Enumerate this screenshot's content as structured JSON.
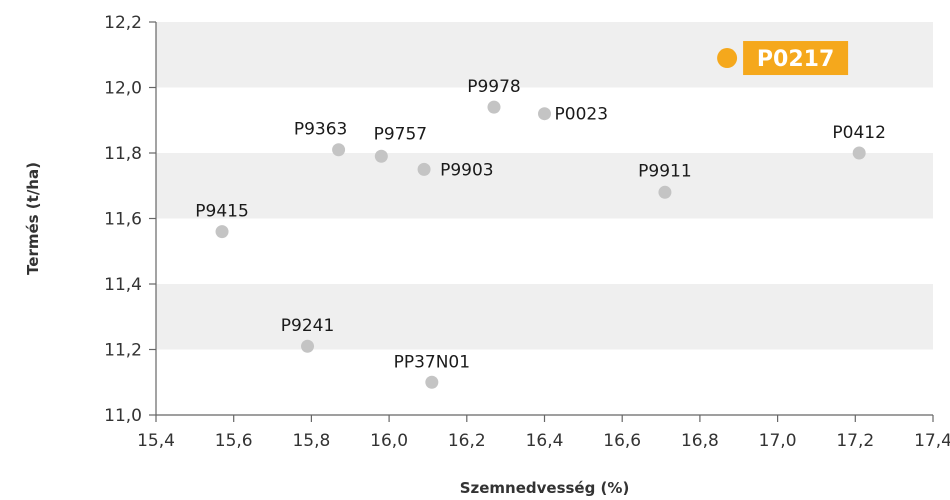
{
  "chart_data": {
    "type": "scatter",
    "xlabel": "Szemnedvesség (%)",
    "ylabel": "Termés (t/ha)",
    "xlim": [
      15.4,
      17.4
    ],
    "ylim": [
      11.0,
      12.2
    ],
    "x_ticks": [
      "15,4",
      "15,6",
      "15,8",
      "16,0",
      "16,2",
      "16,4",
      "16,6",
      "16,8",
      "17,0",
      "17,2",
      "17,4"
    ],
    "y_ticks": [
      "11,0",
      "11,2",
      "11,4",
      "11,6",
      "11,8",
      "12,0",
      "12,2"
    ],
    "grid": "alternating horizontal bands",
    "highlight": "P0217",
    "colors": {
      "point": "#c4c4c4",
      "highlight": "#f5a81c",
      "band": "#efefef",
      "axis": "#666666"
    },
    "points": [
      {
        "label": "P0217",
        "x": 16.87,
        "y": 12.09
      },
      {
        "label": "P9978",
        "x": 16.27,
        "y": 11.94
      },
      {
        "label": "P0023",
        "x": 16.4,
        "y": 11.92
      },
      {
        "label": "P9363",
        "x": 15.87,
        "y": 11.81
      },
      {
        "label": "P9757",
        "x": 15.98,
        "y": 11.79
      },
      {
        "label": "P9903",
        "x": 16.09,
        "y": 11.75
      },
      {
        "label": "P0412",
        "x": 17.21,
        "y": 11.8
      },
      {
        "label": "P9911",
        "x": 16.71,
        "y": 11.68
      },
      {
        "label": "P9415",
        "x": 15.57,
        "y": 11.56
      },
      {
        "label": "P9241",
        "x": 15.79,
        "y": 11.21
      },
      {
        "label": "PP37N01",
        "x": 16.11,
        "y": 11.1
      }
    ]
  }
}
